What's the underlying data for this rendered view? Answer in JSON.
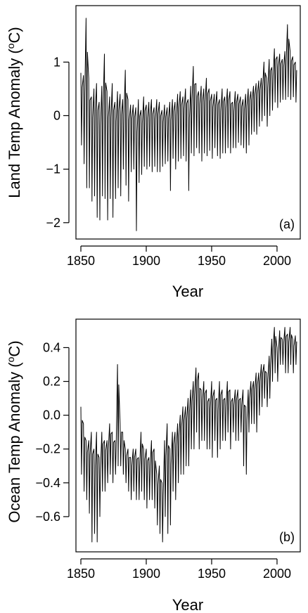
{
  "chart_data": [
    {
      "type": "line",
      "panel_tag": "(a)",
      "ylabel_main": "Land Temp Anomaly (",
      "ylabel_sup": "o",
      "ylabel_end": "C)",
      "xlabel": "Year",
      "xlim": [
        1850,
        2014
      ],
      "ylim": [
        -2.2,
        1.95
      ],
      "xticks": [
        1850,
        1900,
        1950,
        2000
      ],
      "yticks": [
        -2,
        -1,
        0,
        1
      ],
      "ytick_labels": [
        "−2",
        "−1",
        "0",
        "1"
      ],
      "series": [
        {
          "x": [
            1850,
            1852,
            1854,
            1856,
            1858,
            1860,
            1862,
            1864,
            1866,
            1868,
            1870,
            1872,
            1874,
            1876,
            1878,
            1880,
            1882,
            1884,
            1886,
            1888,
            1890,
            1892,
            1894,
            1896,
            1898,
            1900,
            1902,
            1904,
            1906,
            1908,
            1910,
            1912,
            1914,
            1916,
            1918,
            1920,
            1922,
            1924,
            1926,
            1928,
            1930,
            1932,
            1934,
            1936,
            1938,
            1940,
            1942,
            1944,
            1946,
            1948,
            1950,
            1952,
            1954,
            1956,
            1958,
            1960,
            1962,
            1964,
            1966,
            1968,
            1970,
            1972,
            1974,
            1976,
            1978,
            1980,
            1982,
            1984,
            1986,
            1988,
            1990,
            1992,
            1994,
            1996,
            1998,
            2000,
            2002,
            2004,
            2006,
            2008,
            2010,
            2012,
            2014
          ],
          "lo": [
            -0.55,
            -0.9,
            -1.35,
            -1.35,
            -1.6,
            -1.5,
            -1.9,
            -1.95,
            -1.5,
            -1.55,
            -1.95,
            -1.55,
            -1.9,
            -1.55,
            -1.35,
            -1.5,
            -1.0,
            -1.3,
            -1.6,
            -1.05,
            -1.0,
            -2.15,
            -1.25,
            -1.1,
            -0.95,
            -1.0,
            -0.95,
            -1.05,
            -0.95,
            -1.05,
            -1.05,
            -0.95,
            -0.9,
            -0.85,
            -1.4,
            -0.8,
            -1.0,
            -0.85,
            -0.8,
            -0.75,
            -0.85,
            -1.4,
            -0.7,
            -0.75,
            -0.6,
            -0.7,
            -0.85,
            -0.7,
            -0.75,
            -0.65,
            -0.8,
            -0.6,
            -0.75,
            -0.8,
            -0.7,
            -0.7,
            -0.6,
            -0.7,
            -0.6,
            -0.6,
            -0.5,
            -0.55,
            -0.6,
            -0.7,
            -0.55,
            -0.35,
            -0.3,
            -0.35,
            -0.2,
            -0.1,
            0.0,
            -0.2,
            0.0,
            0.1,
            0.25,
            0.15,
            0.25,
            0.3,
            0.3,
            0.35,
            0.3,
            0.35,
            0.25
          ],
          "hi": [
            0.8,
            0.75,
            1.82,
            0.7,
            0.35,
            0.5,
            0.6,
            0.25,
            0.55,
            1.15,
            0.45,
            0.35,
            0.6,
            0.25,
            0.45,
            0.4,
            0.3,
            0.85,
            0.3,
            0.2,
            0.2,
            0.15,
            0.3,
            0.1,
            0.35,
            0.2,
            0.25,
            0.3,
            0.15,
            0.3,
            0.25,
            0.1,
            0.2,
            0.15,
            0.25,
            0.3,
            0.25,
            0.4,
            0.45,
            0.35,
            0.5,
            0.3,
            0.55,
            0.92,
            0.6,
            0.45,
            0.55,
            0.5,
            0.7,
            0.5,
            0.4,
            0.4,
            0.45,
            0.3,
            0.5,
            0.35,
            0.5,
            0.45,
            0.25,
            0.45,
            0.4,
            0.35,
            0.3,
            0.4,
            0.5,
            0.45,
            0.55,
            0.6,
            0.65,
            0.7,
            1.0,
            0.7,
            1.05,
            0.9,
            1.25,
            1.1,
            1.15,
            1.05,
            1.2,
            1.7,
            1.2,
            1.1,
            1.0
          ]
        }
      ]
    },
    {
      "type": "line",
      "panel_tag": "(b)",
      "ylabel_main": "Ocean Temp Anomaly (",
      "ylabel_sup": "o",
      "ylabel_end": "C)",
      "xlabel": "Year",
      "xlim": [
        1850,
        2014
      ],
      "ylim": [
        -0.775,
        0.535
      ],
      "xticks": [
        1850,
        1900,
        1950,
        2000
      ],
      "yticks": [
        -0.6,
        -0.4,
        -0.2,
        0.0,
        0.2,
        0.4
      ],
      "ytick_labels": [
        "−0.6",
        "−0.4",
        "−0.2",
        "0.0",
        "0.2",
        "0.4"
      ],
      "series": [
        {
          "x": [
            1850,
            1852,
            1854,
            1856,
            1858,
            1860,
            1862,
            1864,
            1866,
            1868,
            1870,
            1872,
            1874,
            1876,
            1878,
            1880,
            1882,
            1884,
            1886,
            1888,
            1890,
            1892,
            1894,
            1896,
            1898,
            1900,
            1902,
            1904,
            1906,
            1908,
            1910,
            1912,
            1914,
            1916,
            1918,
            1920,
            1922,
            1924,
            1926,
            1928,
            1930,
            1932,
            1934,
            1936,
            1938,
            1940,
            1942,
            1944,
            1946,
            1948,
            1950,
            1952,
            1954,
            1956,
            1958,
            1960,
            1962,
            1964,
            1966,
            1968,
            1970,
            1972,
            1974,
            1976,
            1978,
            1980,
            1982,
            1984,
            1986,
            1988,
            1990,
            1992,
            1994,
            1996,
            1998,
            2000,
            2002,
            2004,
            2006,
            2008,
            2010,
            2012,
            2014
          ],
          "lo": [
            -0.35,
            -0.45,
            -0.5,
            -0.58,
            -0.75,
            -0.7,
            -0.75,
            -0.6,
            -0.45,
            -0.45,
            -0.4,
            -0.35,
            -0.4,
            -0.35,
            -0.3,
            -0.3,
            -0.35,
            -0.4,
            -0.45,
            -0.5,
            -0.45,
            -0.5,
            -0.5,
            -0.45,
            -0.5,
            -0.55,
            -0.5,
            -0.5,
            -0.55,
            -0.65,
            -0.7,
            -0.75,
            -0.6,
            -0.7,
            -0.65,
            -0.45,
            -0.5,
            -0.4,
            -0.35,
            -0.35,
            -0.3,
            -0.3,
            -0.2,
            -0.2,
            -0.1,
            -0.2,
            -0.15,
            -0.15,
            -0.2,
            -0.2,
            -0.25,
            -0.15,
            -0.25,
            -0.2,
            -0.15,
            -0.15,
            -0.1,
            -0.2,
            -0.1,
            -0.15,
            -0.15,
            -0.1,
            -0.3,
            -0.35,
            -0.1,
            -0.05,
            -0.05,
            -0.1,
            0.0,
            0.05,
            0.1,
            0.05,
            0.1,
            0.2,
            0.25,
            0.2,
            0.3,
            0.3,
            0.25,
            0.25,
            0.3,
            0.25,
            0.3
          ],
          "hi": [
            0.05,
            -0.05,
            -0.15,
            -0.15,
            -0.1,
            -0.2,
            -0.1,
            -0.25,
            -0.1,
            -0.15,
            -0.15,
            -0.05,
            -0.1,
            -0.15,
            0.3,
            -0.05,
            -0.1,
            -0.2,
            -0.2,
            -0.25,
            -0.2,
            -0.2,
            -0.25,
            -0.1,
            -0.2,
            -0.2,
            -0.25,
            -0.15,
            -0.2,
            -0.35,
            -0.3,
            -0.4,
            -0.15,
            -0.05,
            -0.2,
            -0.1,
            -0.1,
            -0.05,
            0.0,
            0.05,
            0.05,
            0.1,
            0.15,
            0.2,
            0.28,
            0.25,
            0.15,
            0.2,
            0.15,
            0.1,
            0.2,
            0.15,
            0.1,
            0.2,
            0.15,
            0.1,
            0.2,
            0.15,
            0.1,
            0.15,
            0.15,
            0.1,
            0.15,
            0.05,
            0.15,
            0.2,
            0.2,
            0.25,
            0.25,
            0.3,
            0.3,
            0.25,
            0.35,
            0.45,
            0.52,
            0.4,
            0.5,
            0.45,
            0.52,
            0.48,
            0.52,
            0.45,
            0.47
          ]
        }
      ]
    }
  ]
}
